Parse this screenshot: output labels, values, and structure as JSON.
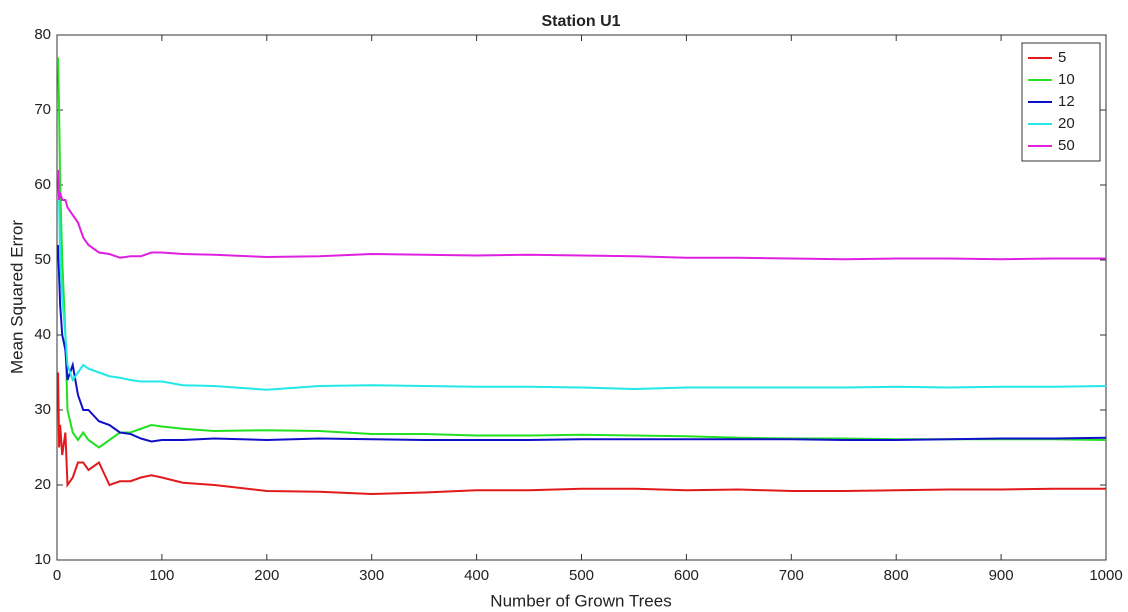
{
  "chart_data": {
    "type": "line",
    "title": "Station U1",
    "x_label": "Number of Grown Trees",
    "y_label": "Mean Squared Error",
    "x": [
      1,
      2,
      3,
      5,
      8,
      10,
      15,
      20,
      25,
      30,
      40,
      50,
      60,
      70,
      80,
      90,
      100,
      120,
      150,
      200,
      250,
      300,
      350,
      400,
      450,
      500,
      550,
      600,
      650,
      700,
      750,
      800,
      850,
      900,
      950,
      1000
    ],
    "series": [
      {
        "name": "5",
        "color": "#e31a1c",
        "values": [
          35,
          25,
          28,
          24,
          27,
          20,
          21,
          23,
          23,
          22,
          23,
          20,
          20.5,
          20.5,
          21,
          21.3,
          21,
          20.3,
          20,
          19.2,
          19.1,
          18.8,
          19,
          19.3,
          19.3,
          19.5,
          19.5,
          19.3,
          19.4,
          19.2,
          19.2,
          19.3,
          19.4,
          19.4,
          19.5,
          19.5
        ]
      },
      {
        "name": "10",
        "color": "#22e022",
        "values": [
          77,
          70,
          60,
          50,
          40,
          30,
          27,
          26,
          27,
          26,
          25,
          26,
          27,
          27,
          27.5,
          28,
          27.8,
          27.5,
          27.2,
          27.3,
          27.2,
          26.8,
          26.8,
          26.6,
          26.6,
          26.7,
          26.6,
          26.5,
          26.3,
          26.2,
          26.2,
          26.1,
          26.1,
          26.1,
          26.1,
          26
        ]
      },
      {
        "name": "12",
        "color": "#1010c8",
        "values": [
          52,
          48,
          44,
          40,
          38,
          34,
          36,
          32,
          30,
          30,
          28.5,
          28,
          27,
          26.8,
          26.2,
          25.8,
          26,
          26,
          26.2,
          26,
          26.2,
          26.1,
          26,
          26,
          26,
          26.1,
          26.1,
          26.1,
          26.1,
          26.1,
          26,
          26,
          26.1,
          26.2,
          26.2,
          26.3
        ]
      },
      {
        "name": "20",
        "color": "#22e8e8",
        "values": [
          62,
          58,
          50,
          45,
          40,
          36,
          34,
          35,
          36,
          35.5,
          35,
          34.5,
          34.3,
          34,
          33.8,
          33.8,
          33.8,
          33.3,
          33.2,
          32.7,
          33.2,
          33.3,
          33.2,
          33.1,
          33.1,
          33,
          32.8,
          33,
          33,
          33,
          33,
          33.1,
          33,
          33.1,
          33.1,
          33.2
        ]
      },
      {
        "name": "50",
        "color": "#e020e0",
        "values": [
          62,
          58,
          59,
          58,
          58,
          57,
          56,
          55,
          53,
          52,
          51,
          50.8,
          50.3,
          50.5,
          50.5,
          51,
          51,
          50.8,
          50.7,
          50.4,
          50.5,
          50.8,
          50.7,
          50.6,
          50.7,
          50.6,
          50.5,
          50.3,
          50.3,
          50.2,
          50.1,
          50.2,
          50.2,
          50.1,
          50.2,
          50.2
        ]
      }
    ],
    "xlim": [
      0,
      1000
    ],
    "xticks": [
      0,
      100,
      200,
      300,
      400,
      500,
      600,
      700,
      800,
      900,
      1000
    ],
    "ylim": [
      10,
      80
    ],
    "yticks": [
      10,
      20,
      30,
      40,
      50,
      60,
      70,
      80
    ],
    "grid": false,
    "legend": "upper right"
  }
}
